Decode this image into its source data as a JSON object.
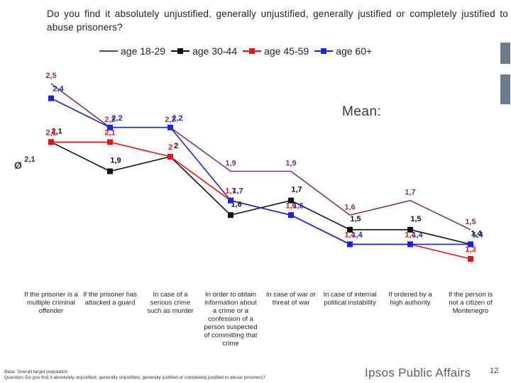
{
  "title": "Do you find it absolutely unjustified, generally unjustified, generally justified or completely justified to abuse prisoners?",
  "mean_label": "Mean:",
  "avg_symbol": "Ø",
  "footer": {
    "base": "Base:      Overall target population",
    "question": "Question:  Do you find it absolutely unjustified, generally unjustified, generally justified or completely justified to abuse prisoners?"
  },
  "brand": "Ipsos Public Affairs",
  "page_number": "12",
  "colors": {
    "age_18_29": "#7b3766",
    "age_30_44": "#111111",
    "age_45_59": "#e0161c",
    "age_60_plus": "#1826d6",
    "sidebar": "#6d7a8a"
  },
  "chart_data": {
    "type": "line",
    "title": "Do you find it absolutely unjustified, generally unjustified, generally justified or completely justified to abuse prisoners?",
    "categories": [
      [
        "If the prisoner is a",
        "multiple criminal",
        "offender"
      ],
      [
        "If the prisoner has",
        "attacked a guard"
      ],
      [
        "In case of a",
        "serious crime",
        "such as murder"
      ],
      [
        "In order to obtain",
        "information about",
        "a crime or a",
        "confession of a",
        "person suspected",
        "of committing that",
        "crime"
      ],
      [
        "In case of war or",
        "threat of war"
      ],
      [
        "In case of internal",
        "political instability"
      ],
      [
        "If ordered by a",
        "high authority"
      ],
      [
        "If the person is",
        "not a citizen of",
        "Montenegro"
      ]
    ],
    "average_label": "2,1",
    "ylim": [
      1.3,
      2.5
    ],
    "legend_position": "top",
    "series": [
      {
        "name": "age 18-29",
        "key": "age_18_29",
        "marker": "none",
        "values": [
          2.5,
          2.2,
          2.2,
          1.9,
          1.9,
          1.6,
          1.7,
          1.5
        ],
        "labels": [
          "2,5",
          "2,2",
          "2,2",
          "1,9",
          "1,9",
          "1,6",
          "1,7",
          "1,5"
        ]
      },
      {
        "name": "age 30-44",
        "key": "age_30_44",
        "marker": "square",
        "values": [
          2.1,
          1.9,
          2.0,
          1.6,
          1.7,
          1.5,
          1.5,
          1.4
        ],
        "labels": [
          "2,1",
          "1,9",
          "2",
          "1,6",
          "1,7",
          "1,5",
          "1,5",
          "1,4"
        ]
      },
      {
        "name": "age 45-59",
        "key": "age_45_59",
        "marker": "square",
        "values": [
          2.1,
          2.1,
          2.0,
          1.7,
          1.6,
          1.4,
          1.4,
          1.3
        ],
        "labels": [
          "2,1",
          "2,1",
          "2",
          "1,7",
          "1,6",
          "1,4",
          "1,4",
          "1,3"
        ]
      },
      {
        "name": "age 60+",
        "key": "age_60_plus",
        "marker": "square",
        "values": [
          2.4,
          2.2,
          2.2,
          1.7,
          1.6,
          1.4,
          1.4,
          1.4
        ],
        "labels": [
          "2,4",
          "2,2",
          "2,2",
          "1,7",
          "1,6",
          "1,4",
          "1,4",
          "1,4"
        ]
      }
    ]
  }
}
